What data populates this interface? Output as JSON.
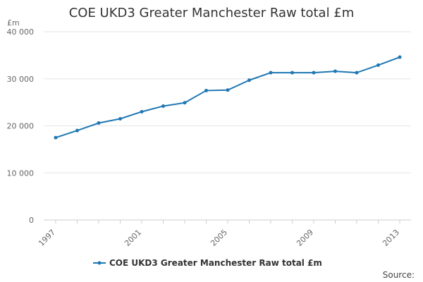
{
  "chart_data": {
    "type": "line",
    "title": "COE UKD3 Greater Manchester Raw total £m",
    "ylabel": "£m",
    "xlabel": "",
    "ylim": [
      0,
      40000
    ],
    "yticks": [
      0,
      10000,
      20000,
      30000,
      40000
    ],
    "ytick_labels": [
      "0",
      "10 000",
      "20 000",
      "30 000",
      "40 000"
    ],
    "xticks": [
      1997,
      2001,
      2005,
      2009,
      2013
    ],
    "xtick_labels": [
      "1997",
      "2001",
      "2005",
      "2009",
      "2013"
    ],
    "series": [
      {
        "name": "COE UKD3 Greater Manchester Raw total £m",
        "color": "#1f77b4",
        "x": [
          1997,
          1998,
          1999,
          2000,
          2001,
          2002,
          2003,
          2004,
          2005,
          2006,
          2007,
          2008,
          2009,
          2010,
          2011,
          2012,
          2013
        ],
        "values": [
          17500,
          19000,
          20600,
          21500,
          23000,
          24200,
          24900,
          27500,
          27600,
          29700,
          31300,
          31300,
          31300,
          31600,
          31300,
          32900,
          34600
        ]
      }
    ],
    "grid": true,
    "legend": "bottom-center"
  },
  "source_label": "Source:"
}
